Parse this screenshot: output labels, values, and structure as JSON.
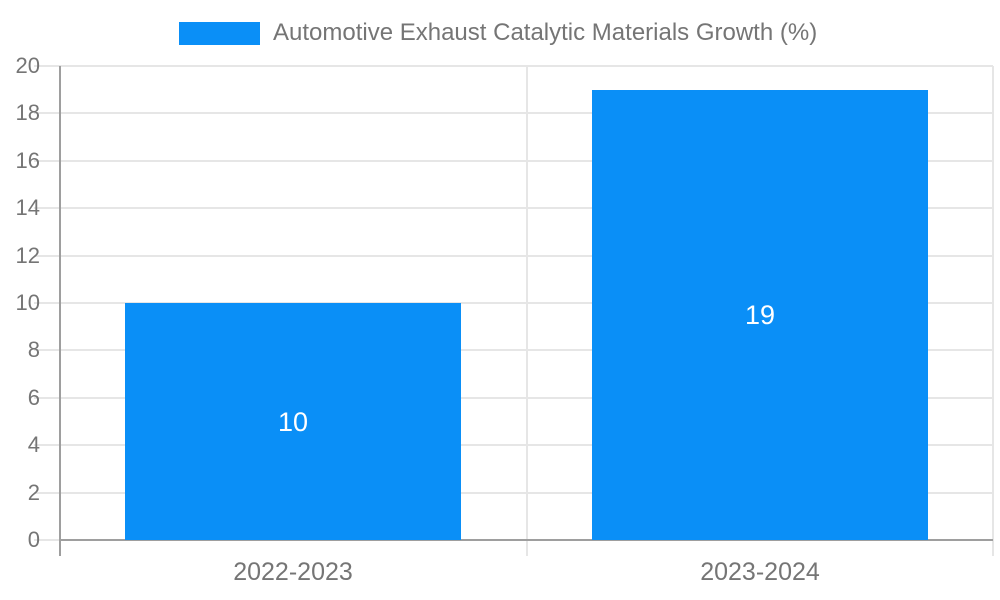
{
  "chart_data": {
    "type": "bar",
    "title": "Automotive Exhaust Catalytic Materials Growth (%)",
    "categories": [
      "2022-2023",
      "2023-2024"
    ],
    "values": [
      10,
      19
    ],
    "data_labels": [
      "10",
      "19"
    ],
    "xlabel": "",
    "ylabel": "",
    "ylim": [
      0,
      20
    ],
    "ytick_step": 2,
    "ytick_labels": [
      "0",
      "2",
      "4",
      "6",
      "8",
      "10",
      "12",
      "14",
      "16",
      "18",
      "20"
    ],
    "grid": true,
    "legend_position": "top-center",
    "colors": {
      "bar": "#0A8FF7",
      "grid": "#E6E6E6",
      "axis": "#9E9E9E",
      "text": "#757575",
      "data_label": "#FFFFFF",
      "background": "#FFFFFF"
    }
  }
}
